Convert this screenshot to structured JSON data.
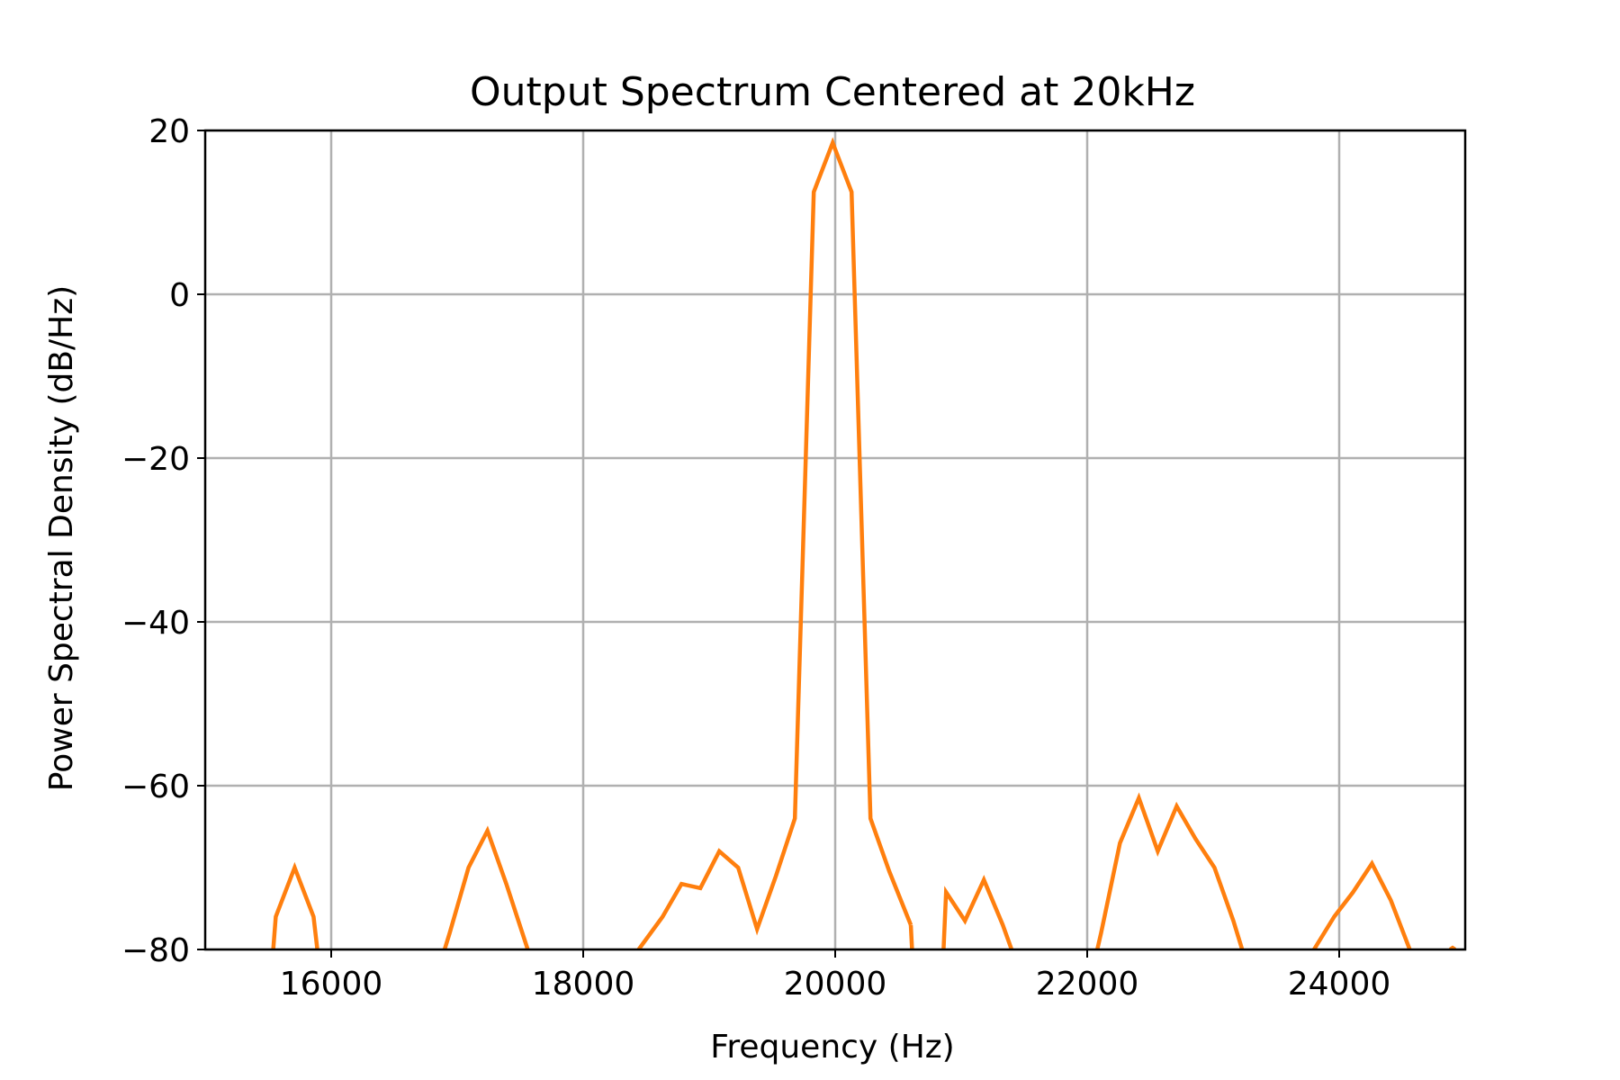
{
  "chart_data": {
    "type": "line",
    "title": "Output Spectrum Centered at 20kHz",
    "xlabel": "Frequency (Hz)",
    "ylabel": "Power Spectral Density (dB/Hz)",
    "xlim": [
      15000,
      25000
    ],
    "ylim": [
      -80,
      20
    ],
    "xticks": [
      16000,
      18000,
      20000,
      22000,
      24000
    ],
    "xtick_labels": [
      "16000",
      "18000",
      "20000",
      "22000",
      "24000"
    ],
    "yticks": [
      20,
      0,
      -20,
      -40,
      -60,
      -80
    ],
    "ytick_labels": [
      "20",
      "0",
      "−20",
      "−40",
      "−60",
      "−80"
    ],
    "grid": true,
    "series": [
      {
        "color": "#ff7f0e",
        "segments": [
          [
            [
              15540,
              -80
            ],
            [
              15560,
              -76
            ],
            [
              15710,
              -70
            ],
            [
              15860,
              -76
            ],
            [
              15890,
              -80
            ]
          ],
          [
            [
              16900,
              -80
            ],
            [
              16940,
              -78
            ],
            [
              17090,
              -70
            ],
            [
              17240,
              -65.5
            ],
            [
              17390,
              -72
            ],
            [
              17560,
              -80
            ]
          ],
          [
            [
              18440,
              -80
            ],
            [
              18630,
              -76
            ],
            [
              18780,
              -72
            ],
            [
              18930,
              -72.5
            ],
            [
              19080,
              -68
            ],
            [
              19230,
              -70
            ],
            [
              19380,
              -77.5
            ],
            [
              19530,
              -71
            ],
            [
              19680,
              -64
            ],
            [
              19830,
              12.5
            ],
            [
              19980,
              18.5
            ],
            [
              20130,
              12.5
            ],
            [
              20280,
              -64
            ],
            [
              20430,
              -70.5
            ],
            [
              20600,
              -77
            ]
          ],
          [
            [
              20610,
              -80
            ],
            [
              20600,
              -77
            ]
          ],
          [
            [
              20860,
              -80
            ],
            [
              20880,
              -73
            ],
            [
              21030,
              -76.5
            ],
            [
              21180,
              -71.5
            ],
            [
              21330,
              -77
            ],
            [
              21400,
              -80
            ]
          ],
          [
            [
              22080,
              -80
            ],
            [
              22110,
              -78
            ],
            [
              22260,
              -67
            ],
            [
              22410,
              -61.5
            ],
            [
              22560,
              -68
            ],
            [
              22710,
              -62.5
            ],
            [
              22860,
              -66.5
            ],
            [
              23010,
              -70
            ],
            [
              23160,
              -76.5
            ],
            [
              23230,
              -80
            ]
          ],
          [
            [
              23800,
              -80
            ],
            [
              23960,
              -76
            ],
            [
              24110,
              -73
            ],
            [
              24260,
              -69.5
            ],
            [
              24410,
              -74
            ],
            [
              24560,
              -80
            ]
          ],
          [
            [
              24880,
              -80
            ],
            [
              24900,
              -79.8
            ],
            [
              24920,
              -80
            ]
          ]
        ]
      }
    ]
  }
}
